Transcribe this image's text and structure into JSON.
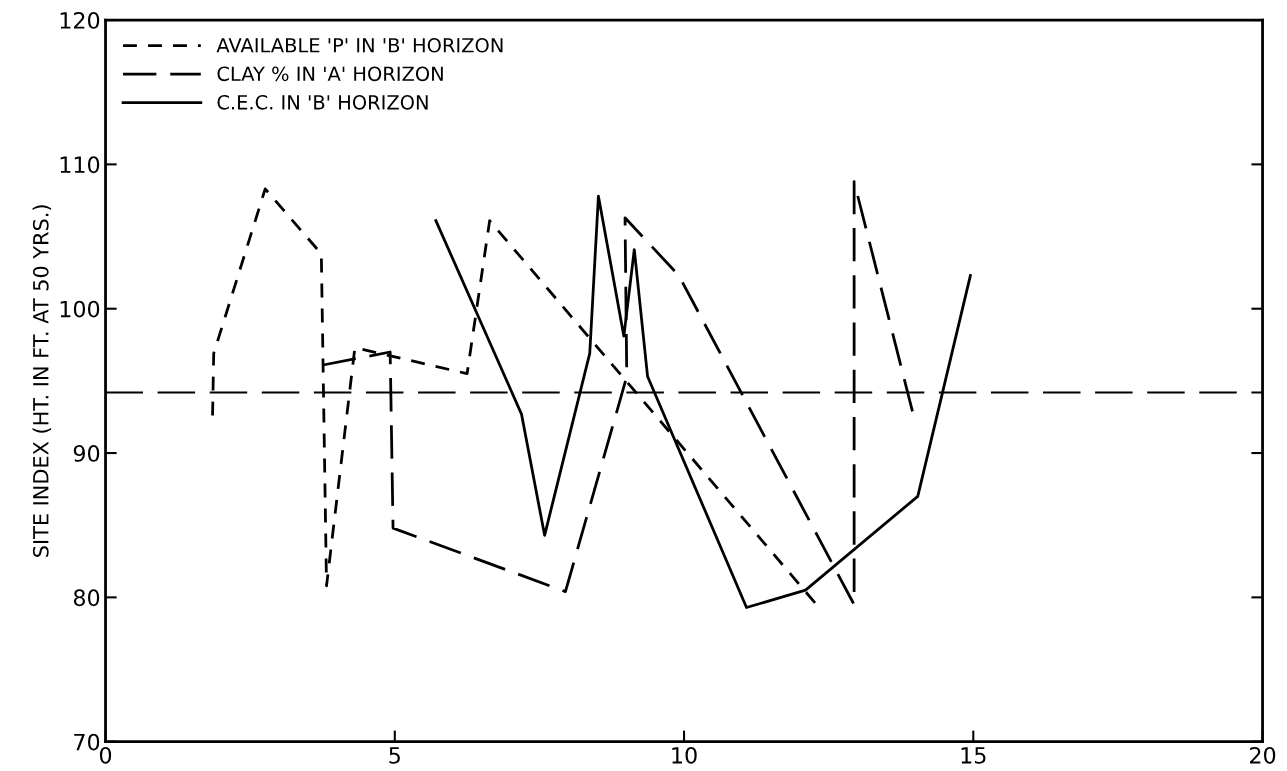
{
  "chart_data": {
    "type": "line",
    "ylabel": "SITE INDEX (HT. IN FT. AT 50 YRS.)",
    "xlim": [
      0,
      20
    ],
    "xticks": [
      0,
      5,
      10,
      15,
      20
    ],
    "ylim": [
      70,
      120
    ],
    "yticks": [
      70,
      80,
      90,
      100,
      110,
      120
    ],
    "grid": false,
    "legend": "top left",
    "marker": "none",
    "series": [
      {
        "name": "AVAILABLE 'P' IN 'B' HORIZON",
        "color": "#000000",
        "line_style": "dotted",
        "x": [
          1.85,
          1.87,
          2.76,
          3.73,
          3.82,
          4.31,
          6.25,
          6.64,
          12.29
        ],
        "values": [
          92.6,
          96.9,
          108.3,
          103.8,
          80.8,
          97.3,
          95.5,
          106.1,
          79.5
        ]
      },
      {
        "name": "CLAY % IN 'A' HORIZON",
        "color": "#000000",
        "line_style": "dashed",
        "x": [
          3.76,
          4.92,
          4.97,
          7.95,
          9.01,
          8.98,
          9.91,
          12.94,
          12.94,
          13.96
        ],
        "values": [
          96.1,
          97.0,
          84.8,
          80.4,
          95.3,
          106.3,
          102.3,
          79.5,
          108.8,
          92.7
        ]
      },
      {
        "name": "C.E.C. IN 'B' HORIZON",
        "color": "#000000",
        "line_style": "solid",
        "x": [
          5.71,
          7.19,
          7.59,
          8.37,
          8.52,
          8.96,
          9.14,
          9.37,
          11.08,
          12.1,
          14.04,
          14.95
        ],
        "values": [
          106.1,
          92.7,
          84.3,
          96.9,
          107.8,
          98.1,
          104.1,
          95.3,
          79.3,
          80.5,
          87.0,
          102.3
        ]
      }
    ],
    "ref_lines": [
      {
        "axis": "y",
        "value": 94.2,
        "color": "#000000",
        "line_style": "dashed"
      }
    ]
  }
}
